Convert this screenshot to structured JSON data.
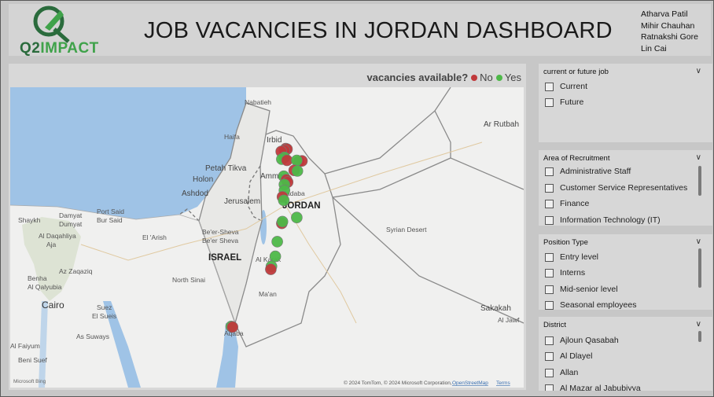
{
  "logo": {
    "q2": "Q2",
    "impact": "IMPACT"
  },
  "title": "JOB VACANCIES IN JORDAN DASHBOARD",
  "authors": [
    "Atharva Patil",
    "Mihir Chauhan",
    "Ratnakshi Gore",
    "Lin Cai"
  ],
  "legend": {
    "label": "vacancies available?",
    "no": "No",
    "yes": "Yes",
    "no_color": "#c0393b",
    "yes_color": "#4db848"
  },
  "map": {
    "countries": {
      "jordan": "JORDAN",
      "israel": "ISRAEL"
    },
    "places": [
      "Nabatieh",
      "Irbid",
      "Haifa",
      "Amman",
      "Petah Tikva",
      "Holon",
      "Ashdod",
      "Jerusalem",
      "Madaba",
      "Port Said",
      "Bur Said",
      "Damyat",
      "Dumyat",
      "Al Daqahliya",
      "Aja",
      "El 'Arish",
      "Be'er-Sheva",
      "Be'er Sheva",
      "Az Zaqaziq",
      "Benha",
      "Al Qalyubia",
      "Cairo",
      "Suez",
      "El Sueis",
      "North Sinai",
      "Al Karak",
      "Ma'an",
      "Aqaba",
      "Syrian Desert",
      "Ar Rutbah",
      "Sakakah",
      "Al Jawf",
      "Al Faiyum",
      "Beni Suef",
      "As Suways",
      "Shaykh"
    ],
    "attribution": "© 2024 TomTom, © 2024 Microsoft Corporation,",
    "osm": "OpenStreetMap",
    "terms": "Terms",
    "bing": "Microsoft Bing",
    "points": [
      {
        "lat": 32.55,
        "lon": 35.85,
        "vacancy": "No"
      },
      {
        "lat": 32.54,
        "lon": 35.87,
        "vacancy": "No"
      },
      {
        "lat": 32.52,
        "lon": 35.83,
        "vacancy": "No"
      },
      {
        "lat": 32.5,
        "lon": 35.78,
        "vacancy": "No"
      },
      {
        "lat": 32.4,
        "lon": 35.83,
        "vacancy": "Yes"
      },
      {
        "lat": 32.37,
        "lon": 35.79,
        "vacancy": "Yes"
      },
      {
        "lat": 32.35,
        "lon": 35.87,
        "vacancy": "No"
      },
      {
        "lat": 32.33,
        "lon": 36.05,
        "vacancy": "No"
      },
      {
        "lat": 32.34,
        "lon": 36.1,
        "vacancy": "No"
      },
      {
        "lat": 32.35,
        "lon": 36.02,
        "vacancy": "Yes"
      },
      {
        "lat": 32.18,
        "lon": 35.98,
        "vacancy": "No"
      },
      {
        "lat": 32.17,
        "lon": 36.03,
        "vacancy": "Yes"
      },
      {
        "lat": 32.08,
        "lon": 35.82,
        "vacancy": "Yes"
      },
      {
        "lat": 32.02,
        "lon": 35.86,
        "vacancy": "No"
      },
      {
        "lat": 31.98,
        "lon": 35.88,
        "vacancy": "No"
      },
      {
        "lat": 31.94,
        "lon": 35.83,
        "vacancy": "Yes"
      },
      {
        "lat": 31.84,
        "lon": 35.83,
        "vacancy": "Yes"
      },
      {
        "lat": 31.73,
        "lon": 35.8,
        "vacancy": "No"
      },
      {
        "lat": 31.67,
        "lon": 35.82,
        "vacancy": "Yes"
      },
      {
        "lat": 31.28,
        "lon": 35.79,
        "vacancy": "No"
      },
      {
        "lat": 31.31,
        "lon": 35.8,
        "vacancy": "Yes"
      },
      {
        "lat": 31.38,
        "lon": 36.02,
        "vacancy": "Yes"
      },
      {
        "lat": 30.97,
        "lon": 35.72,
        "vacancy": "Yes"
      },
      {
        "lat": 30.72,
        "lon": 35.69,
        "vacancy": "Yes"
      },
      {
        "lat": 30.55,
        "lon": 35.63,
        "vacancy": "Yes"
      },
      {
        "lat": 30.5,
        "lon": 35.62,
        "vacancy": "No"
      },
      {
        "lat": 29.53,
        "lon": 35.01,
        "vacancy": "Yes"
      },
      {
        "lat": 29.52,
        "lon": 35.03,
        "vacancy": "No"
      }
    ]
  },
  "slicers": {
    "current_future": {
      "title": "current or future job",
      "options": [
        "Current",
        "Future"
      ]
    },
    "area": {
      "title": "Area of Recruitment",
      "options": [
        "Administrative Staff",
        "Customer Service Representatives",
        "Finance",
        "Information Technology (IT)"
      ]
    },
    "position": {
      "title": "Position Type",
      "options": [
        "Entry level",
        "Interns",
        "Mid-senior level",
        "Seasonal employees"
      ]
    },
    "district": {
      "title": "District",
      "options": [
        "Ajloun Qasabah",
        "Al Dlayel",
        "Allan",
        "Al Mazar al Jabubiyya"
      ]
    }
  }
}
